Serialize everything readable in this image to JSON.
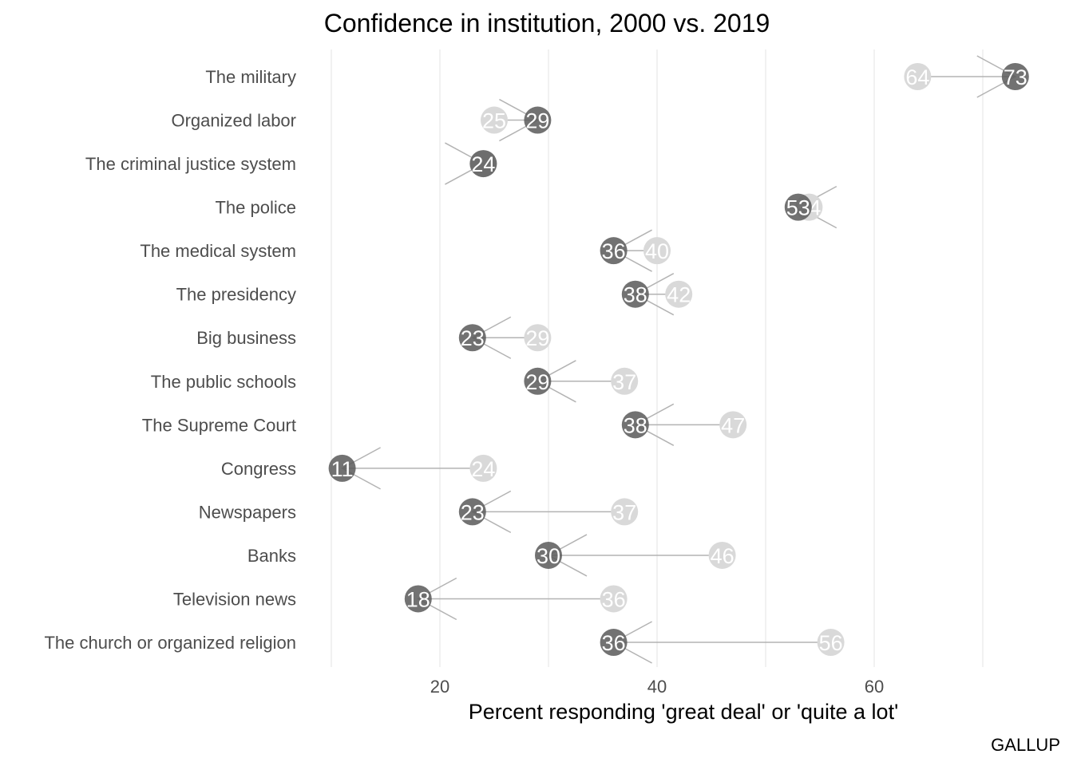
{
  "chart_data": {
    "type": "dumbbell",
    "title": "Confidence in institution, 2000 vs. 2019",
    "xlabel": "Percent responding 'great deal' or 'quite a lot'",
    "ylabel": "",
    "caption": "GALLUP",
    "xlim": [
      9,
      73.5
    ],
    "x_ticks": [
      20,
      40,
      60
    ],
    "grid": true,
    "colors": {
      "2000": "#d9d9d9",
      "2019": "#595959",
      "segment": "#b3b3b3",
      "label": "#ffffff"
    },
    "institutions": [
      {
        "name": "The military",
        "y2000": 64,
        "y2019": 73
      },
      {
        "name": "Organized labor",
        "y2000": 25,
        "y2019": 29
      },
      {
        "name": "The criminal justice system",
        "y2000": 24,
        "y2019": 24
      },
      {
        "name": "The police",
        "y2000": 54,
        "y2019": 53
      },
      {
        "name": "The medical system",
        "y2000": 40,
        "y2019": 36
      },
      {
        "name": "The presidency",
        "y2000": 42,
        "y2019": 38
      },
      {
        "name": "Big business",
        "y2000": 29,
        "y2019": 23
      },
      {
        "name": "The public schools",
        "y2000": 37,
        "y2019": 29
      },
      {
        "name": "The Supreme Court",
        "y2000": 47,
        "y2019": 38
      },
      {
        "name": "Congress",
        "y2000": 24,
        "y2019": 11
      },
      {
        "name": "Newspapers",
        "y2000": 37,
        "y2019": 23
      },
      {
        "name": "Banks",
        "y2000": 46,
        "y2019": 30
      },
      {
        "name": "Television news",
        "y2000": 36,
        "y2019": 18
      },
      {
        "name": "The church or organized religion",
        "y2000": 56,
        "y2019": 36
      }
    ]
  }
}
